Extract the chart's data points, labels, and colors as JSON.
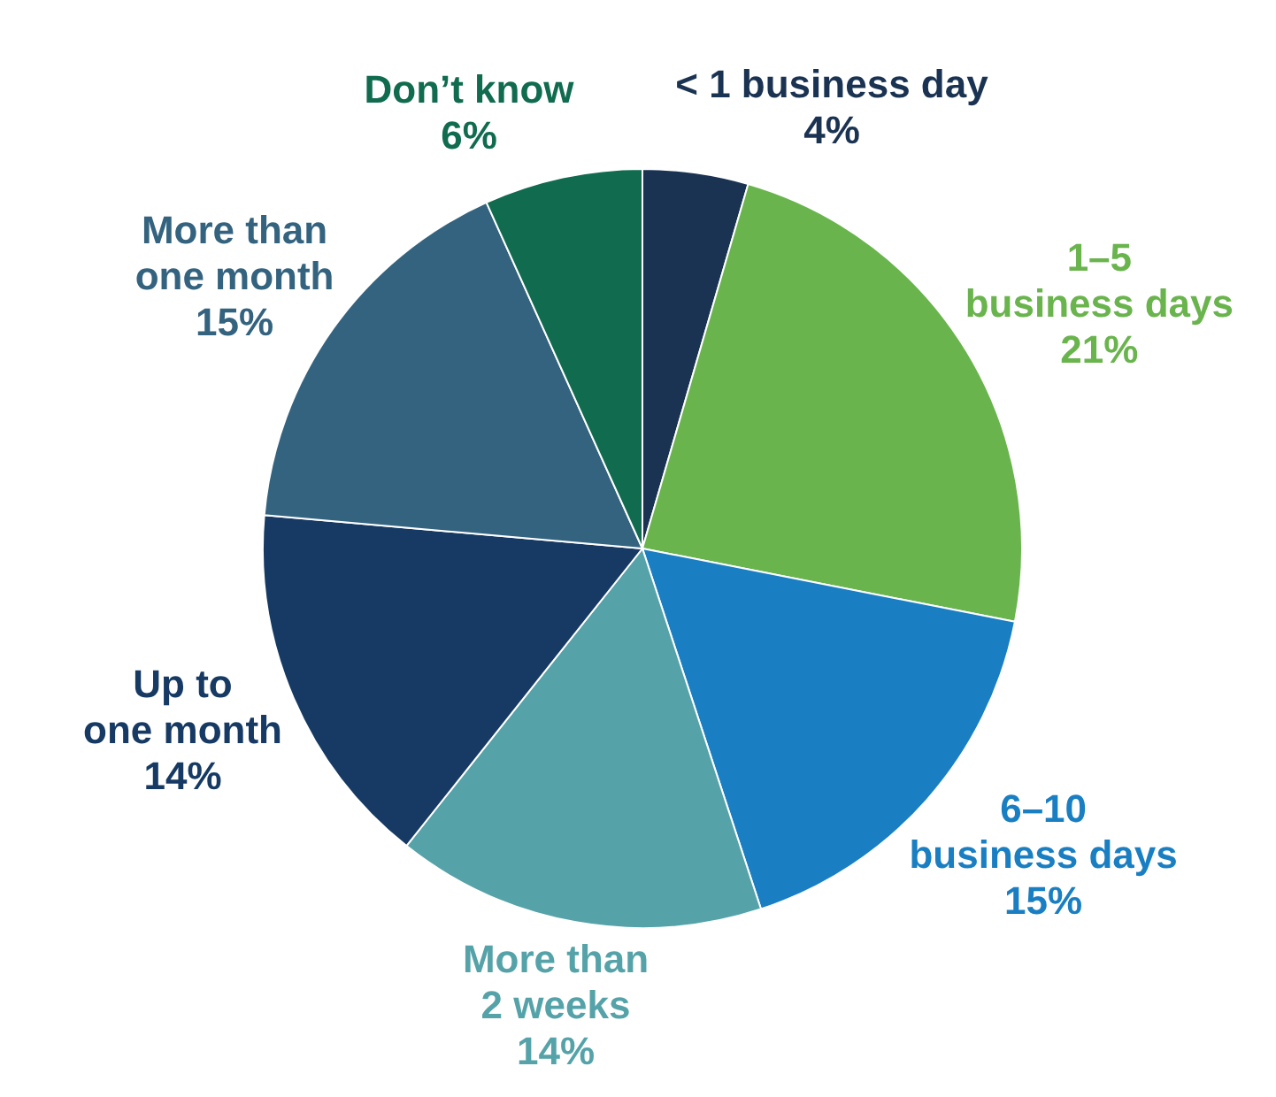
{
  "chart_data": {
    "type": "pie",
    "categories": [
      "< 1 business day",
      "1–5 business days",
      "6–10 business days",
      "More than 2 weeks",
      "Up to one month",
      "More than one month",
      "Don’t know"
    ],
    "values": [
      4,
      21,
      15,
      14,
      14,
      15,
      6
    ],
    "colors": [
      "#1b3352",
      "#6ab44e",
      "#1a7fc2",
      "#55a3a9",
      "#163a63",
      "#34637f",
      "#106b4f"
    ],
    "value_labels": [
      "4%",
      "21%",
      "15%",
      "14%",
      "14%",
      "15%",
      "6%"
    ]
  }
}
